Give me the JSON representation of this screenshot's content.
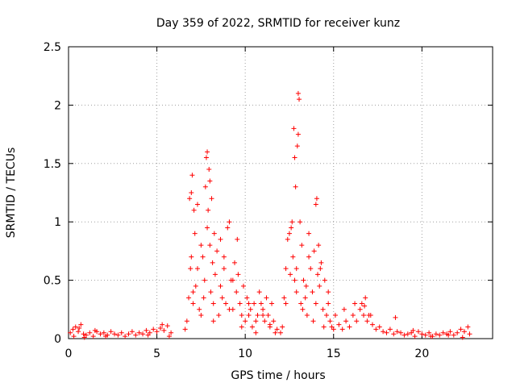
{
  "chart_data": {
    "type": "scatter",
    "title": "Day 359 of 2022, SRMTID for receiver kunz",
    "xlabel": "GPS time / hours",
    "ylabel": "SRMTID / TECUs",
    "xlim": [
      0,
      24
    ],
    "ylim": [
      0,
      2.5
    ],
    "xticks": [
      0,
      5,
      10,
      15,
      20
    ],
    "xtick_labels": [
      "0",
      "5",
      "10",
      "15",
      "20"
    ],
    "yticks": [
      0,
      0.5,
      1,
      1.5,
      2,
      2.5
    ],
    "ytick_labels": [
      "0",
      "0.5",
      "1",
      "1.5",
      "2",
      "2.5"
    ],
    "grid": true,
    "marker": "+",
    "series": [
      {
        "name": "SRMTID",
        "color": "#ff0000",
        "x": [
          0.1,
          0.25,
          0.4,
          0.55,
          0.7,
          0.85,
          1.0,
          1.2,
          1.4,
          1.6,
          1.8,
          2.0,
          2.2,
          2.4,
          2.6,
          2.8,
          3.0,
          3.2,
          3.4,
          3.6,
          3.8,
          4.0,
          4.2,
          4.4,
          4.6,
          4.8,
          5.0,
          5.2,
          5.4,
          5.6,
          5.8,
          0.3,
          0.6,
          0.9,
          1.5,
          2.1,
          4.5,
          5.3,
          5.7,
          6.6,
          6.7,
          6.8,
          6.85,
          6.9,
          6.95,
          7.0,
          7.05,
          7.1,
          7.15,
          7.2,
          7.3,
          7.4,
          7.5,
          7.6,
          7.7,
          7.75,
          7.8,
          7.85,
          7.9,
          7.95,
          8.0,
          8.05,
          8.1,
          8.15,
          8.2,
          8.25,
          8.3,
          8.4,
          8.5,
          8.6,
          8.7,
          8.8,
          8.9,
          9.0,
          9.1,
          9.2,
          9.3,
          9.4,
          9.5,
          9.6,
          9.7,
          9.8,
          9.9,
          10.0,
          10.1,
          10.2,
          10.3,
          10.4,
          10.5,
          10.6,
          10.7,
          10.8,
          10.9,
          11.0,
          11.1,
          11.2,
          11.3,
          11.4,
          11.5,
          11.6,
          11.7,
          11.8,
          6.95,
          7.05,
          7.3,
          7.5,
          7.65,
          7.85,
          8.0,
          8.2,
          8.6,
          8.8,
          9.1,
          9.3,
          9.55,
          9.8,
          10.2,
          10.6,
          11.0,
          11.4,
          12.0,
          12.1,
          12.2,
          12.3,
          12.4,
          12.5,
          12.6,
          12.65,
          12.7,
          12.75,
          12.8,
          12.85,
          12.9,
          12.95,
          13.0,
          13.05,
          13.1,
          13.15,
          13.2,
          13.3,
          13.4,
          13.5,
          13.6,
          13.7,
          13.8,
          13.9,
          14.0,
          14.05,
          14.1,
          14.15,
          14.2,
          14.3,
          14.4,
          14.5,
          14.6,
          14.7,
          14.8,
          14.9,
          15.0,
          12.3,
          12.55,
          12.8,
          12.9,
          13.0,
          13.25,
          13.45,
          13.6,
          13.85,
          14.0,
          14.25,
          14.45,
          14.7,
          15.1,
          15.3,
          15.5,
          15.7,
          15.9,
          16.1,
          16.3,
          16.5,
          16.6,
          16.7,
          16.8,
          16.9,
          17.0,
          17.2,
          17.4,
          17.6,
          17.8,
          18.0,
          18.2,
          18.4,
          18.6,
          18.8,
          19.0,
          19.2,
          19.4,
          19.6,
          19.8,
          20.0,
          20.2,
          20.4,
          20.6,
          20.8,
          21.0,
          21.2,
          21.4,
          21.6,
          21.8,
          22.0,
          22.2,
          22.4,
          22.6,
          22.7,
          15.6,
          16.2,
          16.75,
          17.1,
          18.5,
          19.5,
          20.5,
          21.5,
          22.3
        ],
        "y": [
          0.05,
          0.08,
          0.1,
          0.06,
          0.12,
          0.04,
          0.03,
          0.05,
          0.02,
          0.06,
          0.04,
          0.05,
          0.03,
          0.06,
          0.04,
          0.03,
          0.05,
          0.02,
          0.04,
          0.06,
          0.03,
          0.05,
          0.04,
          0.07,
          0.05,
          0.08,
          0.06,
          0.09,
          0.07,
          0.11,
          0.05,
          0.02,
          0.09,
          0.01,
          0.07,
          0.02,
          0.03,
          0.12,
          0.02,
          0.08,
          0.15,
          0.35,
          1.2,
          0.6,
          1.25,
          1.4,
          0.3,
          1.1,
          0.9,
          0.45,
          1.15,
          0.25,
          0.8,
          0.7,
          0.5,
          1.3,
          1.55,
          1.6,
          1.1,
          1.45,
          1.35,
          0.4,
          1.2,
          0.65,
          0.3,
          0.9,
          0.55,
          0.75,
          0.2,
          0.85,
          0.35,
          0.6,
          0.3,
          0.95,
          1.0,
          0.5,
          0.25,
          0.65,
          0.4,
          0.55,
          0.3,
          0.2,
          0.45,
          0.15,
          0.35,
          0.2,
          0.25,
          0.1,
          0.3,
          0.15,
          0.2,
          0.4,
          0.3,
          0.25,
          0.15,
          0.35,
          0.2,
          0.1,
          0.3,
          0.15,
          0.05,
          0.08,
          0.7,
          0.4,
          0.6,
          0.2,
          0.35,
          0.95,
          0.8,
          0.15,
          0.45,
          0.7,
          0.25,
          0.5,
          0.85,
          0.1,
          0.3,
          0.05,
          0.2,
          0.12,
          0.05,
          0.1,
          0.35,
          0.6,
          0.85,
          0.9,
          0.95,
          1.0,
          0.7,
          1.8,
          0.5,
          1.3,
          0.4,
          1.65,
          2.1,
          2.05,
          1.0,
          0.3,
          0.8,
          0.5,
          0.35,
          0.2,
          0.9,
          0.6,
          0.4,
          0.75,
          0.3,
          1.2,
          0.55,
          0.8,
          0.45,
          0.65,
          0.25,
          0.5,
          0.2,
          0.3,
          0.15,
          0.1,
          0.08,
          0.3,
          0.55,
          1.55,
          0.6,
          1.75,
          0.25,
          0.45,
          0.7,
          0.15,
          1.15,
          0.6,
          0.1,
          0.4,
          0.2,
          0.12,
          0.08,
          0.15,
          0.1,
          0.2,
          0.15,
          0.25,
          0.3,
          0.2,
          0.35,
          0.15,
          0.2,
          0.12,
          0.08,
          0.1,
          0.06,
          0.05,
          0.08,
          0.04,
          0.06,
          0.05,
          0.03,
          0.04,
          0.05,
          0.02,
          0.06,
          0.04,
          0.03,
          0.05,
          0.02,
          0.04,
          0.03,
          0.05,
          0.04,
          0.06,
          0.03,
          0.05,
          0.08,
          0.06,
          0.1,
          0.04,
          0.25,
          0.3,
          0.28,
          0.2,
          0.18,
          0.07,
          0.02,
          0.03,
          0.01
        ]
      }
    ]
  }
}
